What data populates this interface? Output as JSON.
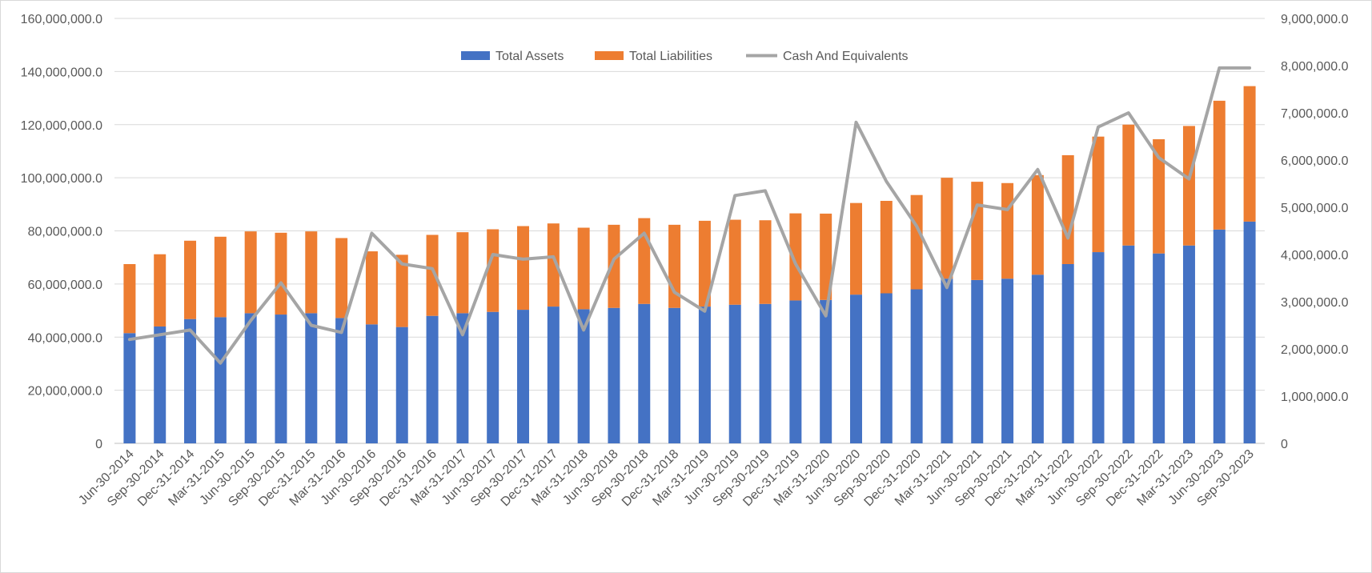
{
  "chart_data": {
    "type": "bar",
    "stacked": true,
    "title": "",
    "xlabel": "",
    "ylabel": "",
    "y2label": "",
    "grid": true,
    "legend_position": "top",
    "ylim": [
      0,
      160000000
    ],
    "y2lim": [
      0,
      9000000
    ],
    "y_ticks": [
      "0",
      "20,000,000.0",
      "40,000,000.0",
      "60,000,000.0",
      "80,000,000.0",
      "100,000,000.0",
      "120,000,000.0",
      "140,000,000.0",
      "160,000,000.0"
    ],
    "y2_ticks": [
      "0",
      "1,000,000.0",
      "2,000,000.0",
      "3,000,000.0",
      "4,000,000.0",
      "5,000,000.0",
      "6,000,000.0",
      "7,000,000.0",
      "8,000,000.0",
      "9,000,000.0"
    ],
    "categories": [
      "Jun-30-2014",
      "Sep-30-2014",
      "Dec-31-2014",
      "Mar-31-2015",
      "Jun-30-2015",
      "Sep-30-2015",
      "Dec-31-2015",
      "Mar-31-2016",
      "Jun-30-2016",
      "Sep-30-2016",
      "Dec-31-2016",
      "Mar-31-2017",
      "Jun-30-2017",
      "Sep-30-2017",
      "Dec-31-2017",
      "Mar-31-2018",
      "Jun-30-2018",
      "Sep-30-2018",
      "Dec-31-2018",
      "Mar-31-2019",
      "Jun-30-2019",
      "Sep-30-2019",
      "Dec-31-2019",
      "Mar-31-2020",
      "Jun-30-2020",
      "Sep-30-2020",
      "Dec-31-2020",
      "Mar-31-2021",
      "Jun-30-2021",
      "Sep-30-2021",
      "Dec-31-2021",
      "Mar-31-2022",
      "Jun-30-2022",
      "Sep-30-2022",
      "Dec-31-2022",
      "Mar-31-2023",
      "Jun-30-2023",
      "Sep-30-2023"
    ],
    "series": [
      {
        "name": "Total Assets",
        "kind": "bar",
        "axis": "left",
        "color": "#4472C4",
        "values": [
          41500000,
          44000000,
          46800000,
          47500000,
          49000000,
          48500000,
          49000000,
          47200000,
          44800000,
          43800000,
          48000000,
          49000000,
          49500000,
          50300000,
          51500000,
          50500000,
          51000000,
          52500000,
          51000000,
          51500000,
          52200000,
          52500000,
          53800000,
          54000000,
          56000000,
          56500000,
          58000000,
          62000000,
          61500000,
          62000000,
          63500000,
          67500000,
          72000000,
          74500000,
          71500000,
          74500000,
          80500000,
          83500000
        ]
      },
      {
        "name": "Total Liabilities",
        "kind": "bar",
        "axis": "left",
        "color": "#ED7D31",
        "values": [
          26000000,
          27200000,
          29500000,
          30300000,
          30800000,
          30800000,
          30800000,
          30100000,
          27500000,
          27200000,
          30500000,
          30500000,
          31100000,
          31500000,
          31300000,
          30700000,
          31300000,
          32300000,
          31300000,
          32300000,
          32000000,
          31500000,
          32800000,
          32500000,
          34500000,
          34800000,
          35500000,
          38000000,
          37000000,
          36000000,
          37500000,
          41000000,
          43500000,
          45500000,
          43000000,
          45000000,
          48500000,
          51000000
        ]
      },
      {
        "name": "Cash And Equivalents",
        "kind": "line",
        "axis": "right",
        "color": "#A5A5A5",
        "values": [
          2200000,
          2300000,
          2400000,
          1700000,
          2600000,
          3400000,
          2500000,
          2350000,
          4450000,
          3800000,
          3700000,
          2300000,
          4000000,
          3900000,
          3950000,
          2400000,
          3900000,
          4450000,
          3200000,
          2800000,
          5250000,
          5350000,
          3800000,
          2700000,
          6800000,
          5550000,
          4600000,
          3300000,
          5050000,
          4950000,
          5800000,
          4350000,
          6700000,
          7000000,
          6050000,
          5600000,
          7950000,
          7950000
        ]
      }
    ]
  }
}
